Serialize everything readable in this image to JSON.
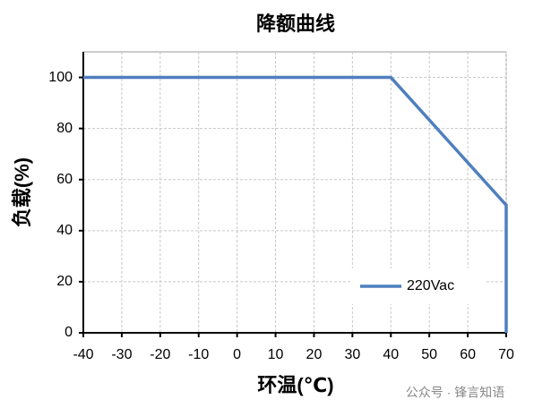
{
  "chart_data": {
    "type": "line",
    "title": "降额曲线",
    "xlabel": "环温(℃)",
    "ylabel": "负载(%)",
    "x": [
      -40,
      40,
      70,
      70
    ],
    "series": [
      {
        "name": "220Vac",
        "color": "#4f7fbf",
        "values": [
          100,
          100,
          50,
          0
        ]
      }
    ],
    "xlim": [
      -40,
      70
    ],
    "xticks": [
      -40,
      -30,
      -20,
      -10,
      0,
      10,
      20,
      30,
      40,
      50,
      60,
      70
    ],
    "ylim": [
      0,
      110
    ],
    "yticks": [
      0,
      20,
      40,
      60,
      80,
      100
    ],
    "grid": true,
    "legend": "lower right"
  },
  "watermark": "公众号 · 锋言知语"
}
